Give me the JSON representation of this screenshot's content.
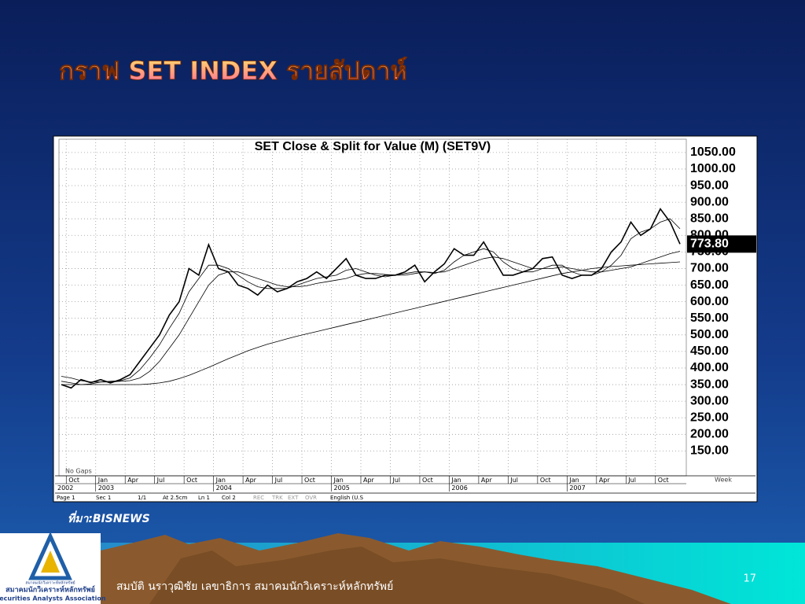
{
  "slide": {
    "title": "กราฟ SET INDEX รายสัปดาห์",
    "source": "ที่มา:BISNEWS",
    "footer": "สมบัติ นราวุฒิชัย เลขาธิการ สมาคมนักวิเคราะห์หลักทรัพย์",
    "page_number": "17",
    "logo_small": "สมาคมนักวิเคราะห์หลักทรัพย์",
    "logo_thai": "สมาคมนักวิเคราะห์หลักทรัพย์",
    "logo_english": "Securities Analysts Association",
    "status_bar": [
      "Page 1",
      "Sec 1",
      "1/1",
      "At 2.5cm",
      "Ln 1",
      "Col 2",
      "REC",
      "TRK",
      "EXT",
      "OVR",
      "English (U.S"
    ]
  },
  "chart_data": {
    "type": "line",
    "title": "SET  Close  &  Split  for  Value  (M)  (SET9V)",
    "corner_note": "No Gaps",
    "x_unit": "Week",
    "grid": true,
    "categories": [
      null,
      "Oct",
      null,
      null,
      "Jan",
      null,
      null,
      "Apr",
      null,
      null,
      "Jul",
      null,
      null,
      "Oct",
      null,
      null,
      "Jan",
      null,
      null,
      "Apr",
      null,
      null,
      "Jul",
      null,
      null,
      "Oct",
      null,
      null,
      "Jan",
      null,
      null,
      "Apr",
      null,
      null,
      "Jul",
      null,
      null,
      "Oct",
      null,
      null,
      "Jan",
      null,
      null,
      "Apr",
      null,
      null,
      "Jul",
      null,
      null,
      "Oct",
      null,
      null,
      "Jan",
      null,
      null,
      "Apr",
      null,
      null,
      "Jul",
      null,
      null,
      "Oct",
      null,
      null
    ],
    "x_years": [
      "2002",
      null,
      null,
      null,
      "2003",
      null,
      null,
      null,
      null,
      null,
      null,
      null,
      null,
      null,
      null,
      null,
      "2004",
      null,
      null,
      null,
      null,
      null,
      null,
      null,
      null,
      null,
      null,
      null,
      "2005",
      null,
      null,
      null,
      null,
      null,
      null,
      null,
      null,
      null,
      null,
      null,
      "2006",
      null,
      null,
      null,
      null,
      null,
      null,
      null,
      null,
      null,
      null,
      null,
      "2007",
      null,
      null,
      null,
      null,
      null,
      null,
      null,
      null,
      null,
      null,
      null
    ],
    "ylim": [
      75,
      1090
    ],
    "yticks": [
      {
        "value": 150,
        "label": "150.00"
      },
      {
        "value": 200,
        "label": "200.00"
      },
      {
        "value": 250,
        "label": "250.00"
      },
      {
        "value": 300,
        "label": "300.00"
      },
      {
        "value": 350,
        "label": "350.00"
      },
      {
        "value": 400,
        "label": "400.00"
      },
      {
        "value": 450,
        "label": "450.00"
      },
      {
        "value": 500,
        "label": "500.00"
      },
      {
        "value": 550,
        "label": "550.00"
      },
      {
        "value": 600,
        "label": "600.00"
      },
      {
        "value": 650,
        "label": "650.00"
      },
      {
        "value": 700,
        "label": "700.00"
      },
      {
        "value": 750,
        "label": "750.00"
      },
      {
        "value": 800,
        "label": "800.00"
      },
      {
        "value": 850,
        "label": "850.00"
      },
      {
        "value": 900,
        "label": "900.00"
      },
      {
        "value": 950,
        "label": "950.00"
      },
      {
        "value": 1000,
        "label": "1000.00"
      },
      {
        "value": 1050,
        "label": "1050.00"
      }
    ],
    "series": [
      {
        "color": "#000000",
        "width": 1.6,
        "values": [
          350,
          340,
          365,
          356,
          365,
          355,
          365,
          380,
          420,
          460,
          500,
          560,
          600,
          700,
          680,
          772,
          700,
          690,
          650,
          640,
          620,
          650,
          630,
          640,
          660,
          670,
          690,
          670,
          700,
          730,
          680,
          670,
          670,
          680,
          680,
          690,
          710,
          660,
          690,
          714,
          760,
          740,
          740,
          780,
          730,
          680,
          680,
          690,
          700,
          730,
          735,
          680,
          670,
          680,
          680,
          700,
          750,
          780,
          840,
          800,
          820,
          880,
          840,
          773.8
        ],
        "value_labels": [
          null,
          null,
          null,
          null,
          null,
          null,
          null,
          null,
          null,
          null,
          null,
          null,
          null,
          null,
          null,
          null,
          null,
          null,
          null,
          null,
          null,
          null,
          null,
          null,
          null,
          null,
          null,
          null,
          null,
          null,
          null,
          null,
          null,
          null,
          null,
          null,
          null,
          null,
          null,
          null,
          null,
          null,
          null,
          null,
          null,
          null,
          null,
          null,
          null,
          null,
          null,
          null,
          null,
          null,
          null,
          null,
          null,
          null,
          null,
          null,
          null,
          null,
          null,
          "773.80"
        ]
      },
      {
        "color": "#000000",
        "width": 0.8,
        "values": [
          360,
          355,
          350,
          352,
          358,
          360,
          362,
          370,
          395,
          430,
          470,
          520,
          565,
          630,
          670,
          710,
          710,
          700,
          680,
          660,
          645,
          640,
          640,
          640,
          650,
          660,
          670,
          675,
          680,
          695,
          700,
          690,
          680,
          675,
          680,
          685,
          690,
          690,
          685,
          695,
          720,
          740,
          750,
          760,
          750,
          720,
          700,
          690,
          690,
          700,
          710,
          710,
          690,
          680,
          680,
          690,
          710,
          740,
          790,
          810,
          820,
          840,
          850,
          820
        ]
      },
      {
        "color": "#000000",
        "width": 0.8,
        "values": [
          375,
          370,
          362,
          358,
          358,
          358,
          360,
          362,
          370,
          390,
          420,
          460,
          500,
          550,
          600,
          650,
          680,
          690,
          690,
          680,
          670,
          660,
          650,
          645,
          645,
          648,
          655,
          660,
          665,
          670,
          680,
          685,
          685,
          682,
          680,
          680,
          685,
          690,
          688,
          690,
          700,
          710,
          720,
          730,
          735,
          730,
          720,
          710,
          700,
          700,
          700,
          705,
          700,
          695,
          690,
          690,
          695,
          700,
          705,
          715,
          725,
          735,
          745,
          752
        ]
      },
      {
        "color": "#000000",
        "width": 0.8,
        "values": [
          350,
          350,
          350,
          350,
          350,
          350,
          350,
          350,
          350,
          352,
          355,
          360,
          368,
          378,
          390,
          402,
          415,
          428,
          440,
          452,
          462,
          472,
          480,
          488,
          496,
          503,
          510,
          517,
          524,
          531,
          538,
          545,
          552,
          559,
          566,
          573,
          580,
          587,
          594,
          601,
          608,
          615,
          622,
          629,
          636,
          643,
          650,
          657,
          664,
          671,
          678,
          685,
          690,
          695,
          700,
          703,
          706,
          708,
          710,
          712,
          714,
          716,
          718,
          720
        ]
      }
    ]
  }
}
